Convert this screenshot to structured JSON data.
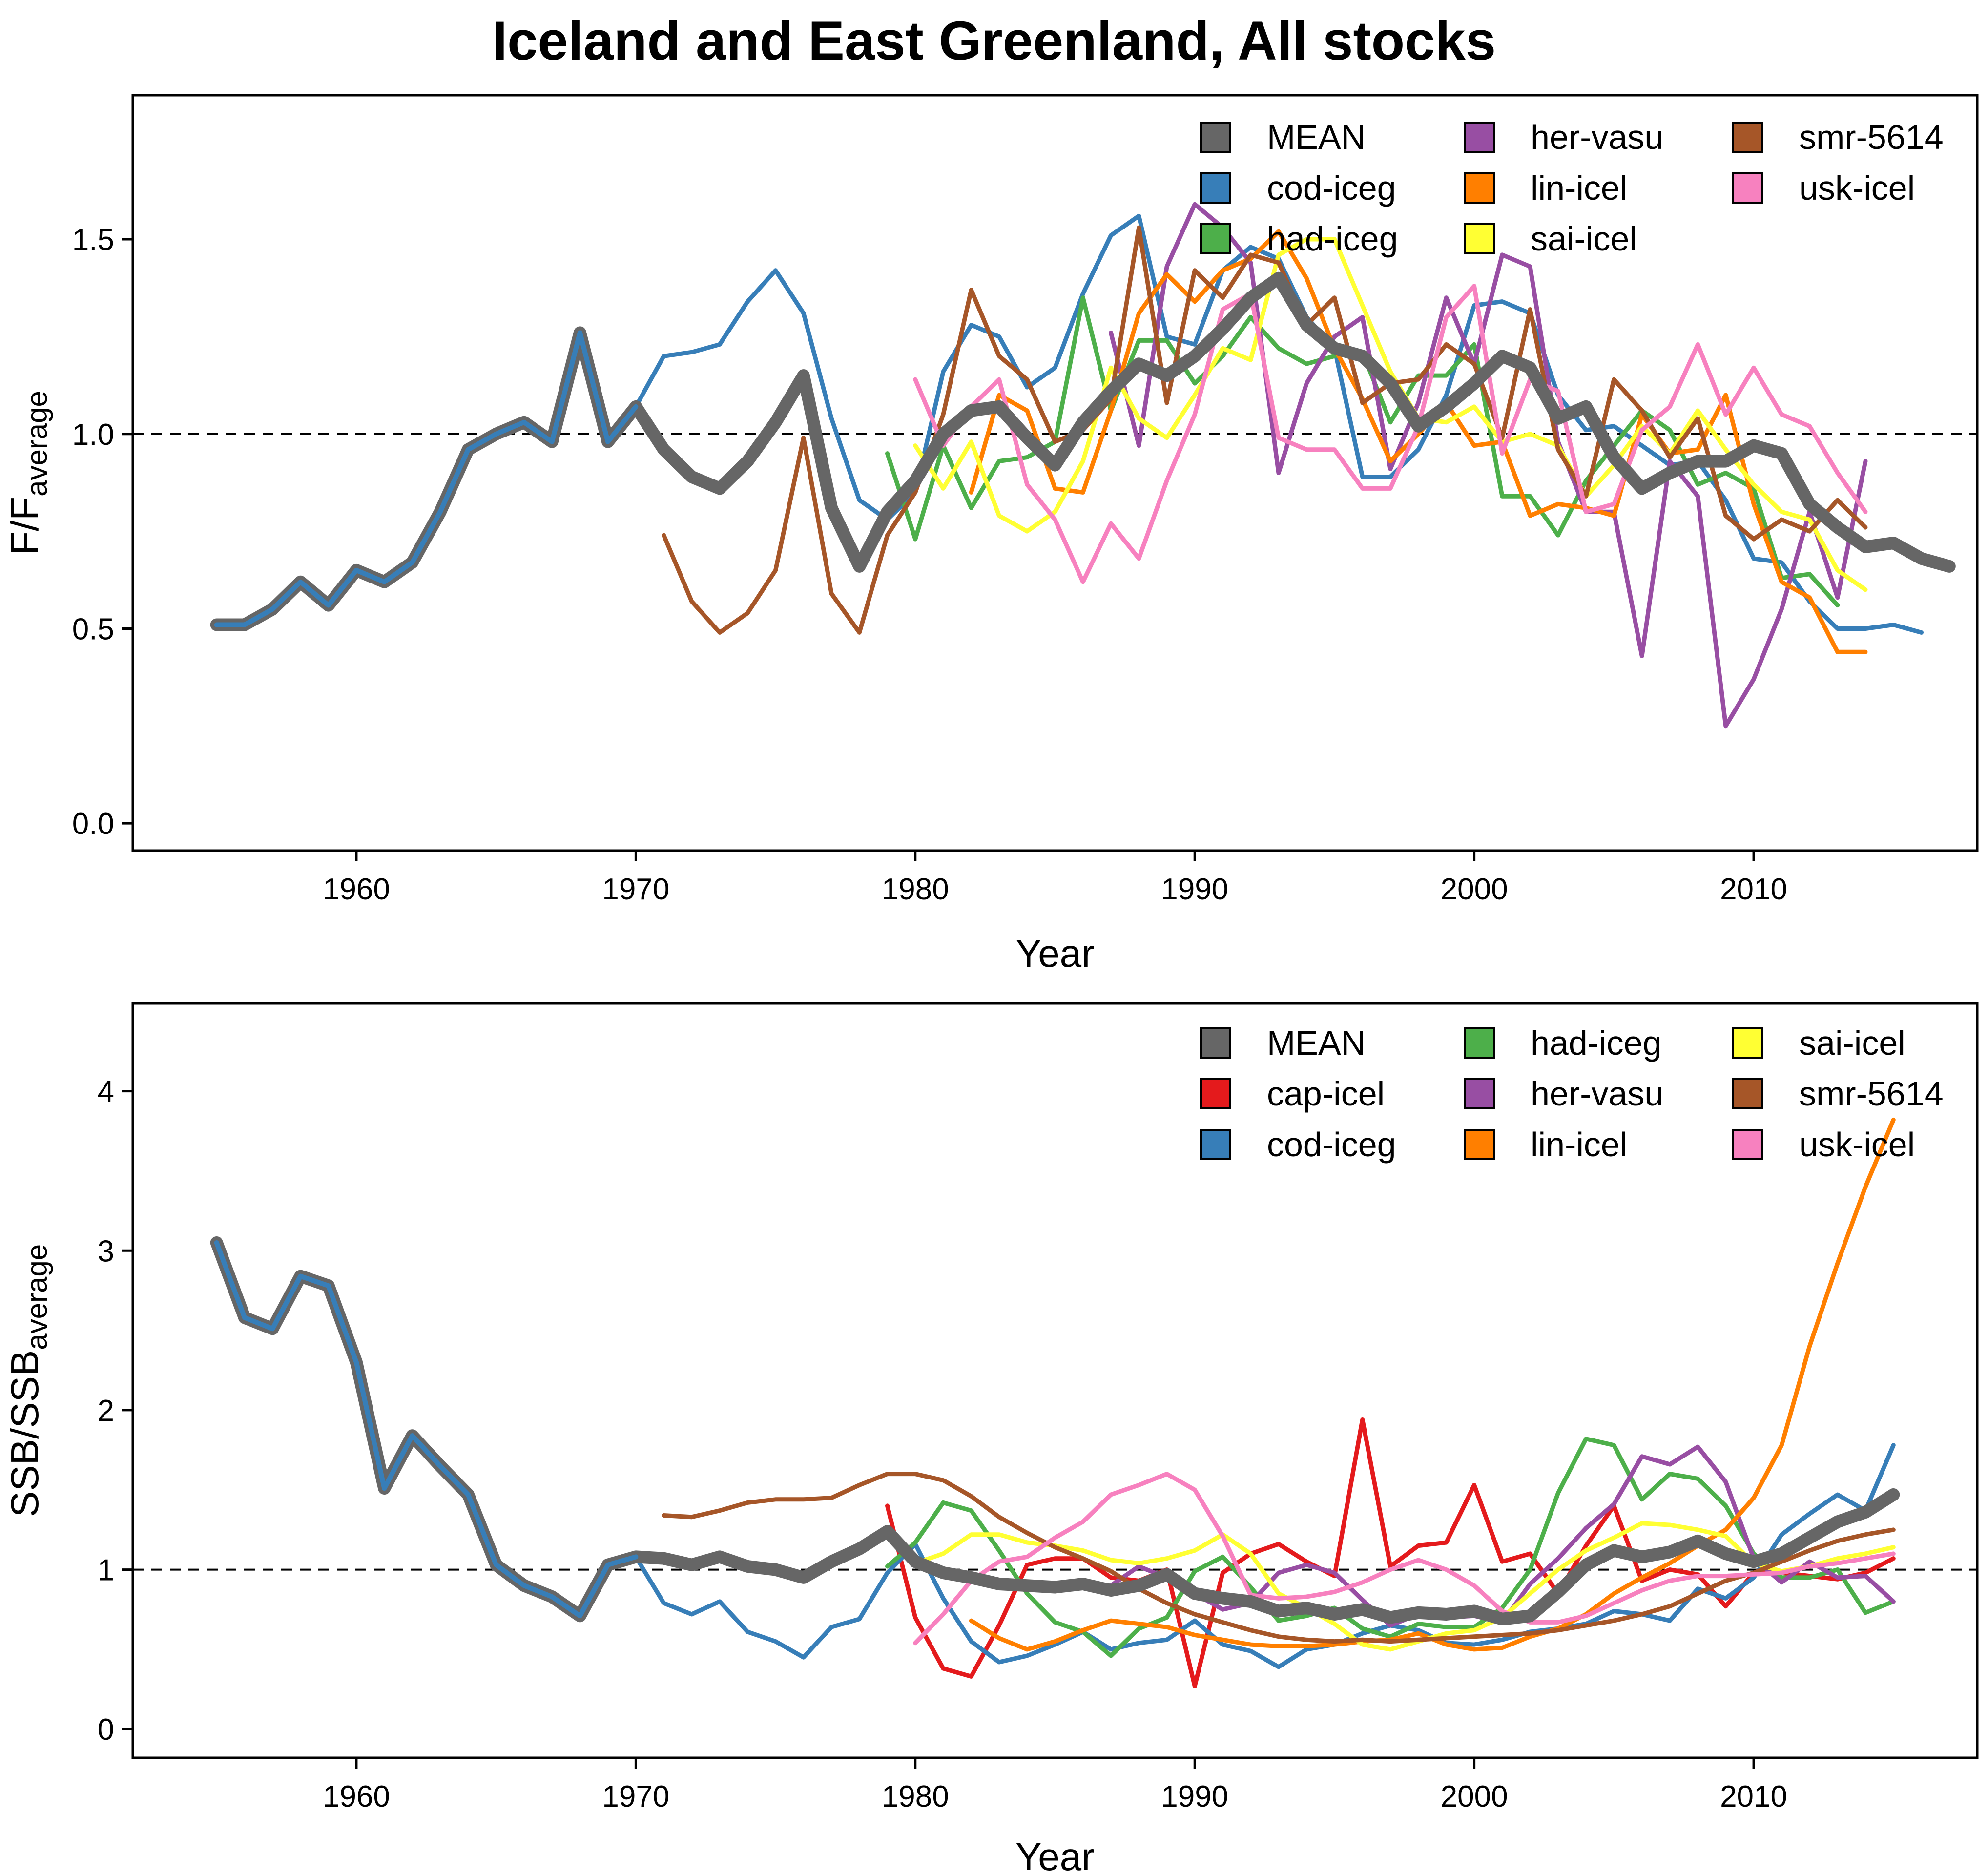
{
  "figure": {
    "title": "Iceland and East Greenland, All stocks"
  },
  "chart_data": [
    {
      "type": "line",
      "ylabel_main": "F/F",
      "ylabel_sub": "average",
      "xlabel": "Year",
      "xlim": [
        1952,
        2018
      ],
      "ylim": [
        -0.07,
        1.87
      ],
      "xticks": [
        1960,
        1970,
        1980,
        1990,
        2000,
        2010
      ],
      "yticks": [
        "0.0",
        "0.5",
        "1.0",
        "1.5"
      ],
      "reference_line": 1.0,
      "legend": {
        "placement": "top-right",
        "columns": 3
      },
      "series": [
        {
          "name": "MEAN",
          "color": "#666666",
          "start": 1955,
          "values": [
            0.51,
            0.51,
            0.55,
            0.62,
            0.56,
            0.65,
            0.62,
            0.67,
            0.8,
            0.96,
            1.0,
            1.03,
            0.98,
            1.26,
            0.98,
            1.07,
            0.96,
            0.89,
            0.86,
            0.93,
            1.03,
            1.15,
            0.81,
            0.66,
            0.8,
            0.88,
            1.0,
            1.06,
            1.07,
            0.99,
            0.92,
            1.03,
            1.11,
            1.18,
            1.15,
            1.2,
            1.27,
            1.35,
            1.4,
            1.28,
            1.22,
            1.2,
            1.13,
            1.02,
            1.07,
            1.13,
            1.2,
            1.17,
            1.04,
            1.07,
            0.94,
            0.86,
            0.9,
            0.93,
            0.93,
            0.97,
            0.95,
            0.82,
            0.76,
            0.71,
            0.72,
            0.68,
            0.66
          ]
        },
        {
          "name": "cod-iceg",
          "color": "#377EB8",
          "start": 1955,
          "values": [
            0.51,
            0.51,
            0.55,
            0.62,
            0.56,
            0.65,
            0.62,
            0.67,
            0.8,
            0.96,
            1.0,
            1.03,
            0.98,
            1.26,
            0.98,
            1.07,
            1.2,
            1.21,
            1.23,
            1.34,
            1.42,
            1.31,
            1.04,
            0.83,
            0.78,
            0.85,
            1.16,
            1.28,
            1.25,
            1.12,
            1.17,
            1.36,
            1.51,
            1.56,
            1.25,
            1.23,
            1.42,
            1.48,
            1.45,
            1.3,
            1.22,
            0.89,
            0.89,
            0.96,
            1.1,
            1.33,
            1.34,
            1.31,
            1.1,
            1.01,
            1.02,
            0.97,
            0.92,
            0.93,
            0.83,
            0.68,
            0.67,
            0.57,
            0.5,
            0.5,
            0.51,
            0.49
          ]
        },
        {
          "name": "had-iceg",
          "color": "#4DAF4A",
          "start": 1979,
          "values": [
            0.95,
            0.73,
            0.97,
            0.81,
            0.93,
            0.94,
            0.98,
            1.35,
            1.06,
            1.24,
            1.24,
            1.13,
            1.2,
            1.3,
            1.22,
            1.18,
            1.2,
            1.21,
            1.03,
            1.15,
            1.15,
            1.23,
            0.84,
            0.84,
            0.74,
            0.88,
            0.97,
            1.06,
            1.01,
            0.87,
            0.9,
            0.86,
            0.63,
            0.64,
            0.56
          ]
        },
        {
          "name": "her-vasu",
          "color": "#984EA3",
          "start": 1987,
          "values": [
            1.26,
            0.97,
            1.43,
            1.59,
            1.53,
            1.44,
            0.9,
            1.13,
            1.25,
            1.3,
            0.91,
            1.08,
            1.35,
            1.18,
            1.46,
            1.43,
            0.98,
            0.8,
            0.8,
            0.43,
            0.93,
            0.84,
            0.25,
            0.37,
            0.55,
            0.8,
            0.58,
            0.93
          ]
        },
        {
          "name": "lin-icel",
          "color": "#FF7F00",
          "start": 1982,
          "values": [
            0.85,
            1.1,
            1.06,
            0.86,
            0.85,
            1.06,
            1.31,
            1.41,
            1.34,
            1.42,
            1.45,
            1.52,
            1.4,
            1.22,
            1.09,
            0.93,
            1.0,
            1.08,
            0.97,
            0.98,
            0.79,
            0.82,
            0.81,
            0.79,
            1.05,
            0.95,
            0.96,
            1.1,
            0.82,
            0.62,
            0.58,
            0.44,
            0.44
          ]
        },
        {
          "name": "sai-icel",
          "color": "#FFFF33",
          "start": 1980,
          "values": [
            0.97,
            0.86,
            0.98,
            0.79,
            0.75,
            0.8,
            0.93,
            1.17,
            1.04,
            0.99,
            1.1,
            1.22,
            1.19,
            1.46,
            1.5,
            1.5,
            1.33,
            1.16,
            1.04,
            1.03,
            1.07,
            0.98,
            1.0,
            0.97,
            0.84,
            0.92,
            1.02,
            0.95,
            1.06,
            0.96,
            0.87,
            0.8,
            0.78,
            0.65,
            0.6
          ]
        },
        {
          "name": "smr-5614",
          "color": "#A65628",
          "start": 1971,
          "values": [
            0.74,
            0.57,
            0.49,
            0.54,
            0.65,
            0.99,
            0.59,
            0.49,
            0.74,
            0.85,
            1.05,
            1.37,
            1.2,
            1.14,
            0.98,
            1.01,
            1.09,
            1.53,
            1.08,
            1.42,
            1.35,
            1.46,
            1.44,
            1.28,
            1.35,
            1.08,
            1.13,
            1.14,
            1.23,
            1.18,
            0.99,
            1.32,
            0.96,
            0.84,
            1.14,
            1.06,
            0.94,
            1.04,
            0.79,
            0.73,
            0.78,
            0.75,
            0.83,
            0.76
          ]
        },
        {
          "name": "usk-icel",
          "color": "#F781BF",
          "start": 1980,
          "values": [
            1.14,
            0.97,
            1.07,
            1.14,
            0.87,
            0.78,
            0.62,
            0.77,
            0.68,
            0.88,
            1.05,
            1.32,
            1.36,
            0.99,
            0.96,
            0.96,
            0.86,
            0.86,
            1.02,
            1.3,
            1.38,
            0.95,
            1.14,
            1.11,
            0.8,
            0.82,
            1.01,
            1.07,
            1.23,
            1.05,
            1.17,
            1.05,
            1.02,
            0.9,
            0.8
          ]
        }
      ]
    },
    {
      "type": "line",
      "ylabel_main": "SSB/SSB",
      "ylabel_sub": "average",
      "xlabel": "Year",
      "xlim": [
        1952,
        2018
      ],
      "ylim": [
        -0.18,
        4.55
      ],
      "xticks": [
        1960,
        1970,
        1980,
        1990,
        2000,
        2010
      ],
      "yticks": [
        "0",
        "1",
        "2",
        "3",
        "4"
      ],
      "reference_line": 1.0,
      "legend": {
        "placement": "top-right",
        "columns": 3
      },
      "series": [
        {
          "name": "MEAN",
          "color": "#666666",
          "start": 1955,
          "values": [
            3.05,
            2.58,
            2.51,
            2.84,
            2.78,
            2.3,
            1.51,
            1.84,
            1.65,
            1.47,
            1.03,
            0.9,
            0.83,
            0.71,
            1.03,
            1.08,
            1.07,
            1.03,
            1.08,
            1.02,
            1.0,
            0.95,
            1.05,
            1.13,
            1.24,
            1.05,
            0.98,
            0.95,
            0.91,
            0.9,
            0.89,
            0.91,
            0.87,
            0.9,
            0.97,
            0.85,
            0.82,
            0.8,
            0.74,
            0.76,
            0.72,
            0.75,
            0.7,
            0.73,
            0.72,
            0.74,
            0.69,
            0.71,
            0.86,
            1.03,
            1.12,
            1.08,
            1.11,
            1.18,
            1.1,
            1.05,
            1.1,
            1.2,
            1.3,
            1.36,
            1.47
          ]
        },
        {
          "name": "cap-icel",
          "color": "#E41A1C",
          "start": 1979,
          "values": [
            1.4,
            0.7,
            0.38,
            0.33,
            0.65,
            1.03,
            1.07,
            1.07,
            0.95,
            0.93,
            1.0,
            0.27,
            0.98,
            1.1,
            1.16,
            1.05,
            0.96,
            1.94,
            1.02,
            1.15,
            1.17,
            1.53,
            1.05,
            1.1,
            0.85,
            1.15,
            1.4,
            0.93,
            1.0,
            0.97,
            0.77,
            0.98,
            0.98,
            0.96,
            0.94,
            0.98,
            1.07
          ]
        },
        {
          "name": "cod-iceg",
          "color": "#377EB8",
          "start": 1955,
          "values": [
            3.05,
            2.58,
            2.51,
            2.84,
            2.78,
            2.3,
            1.51,
            1.84,
            1.65,
            1.47,
            1.03,
            0.9,
            0.83,
            0.71,
            1.03,
            1.08,
            0.79,
            0.72,
            0.8,
            0.61,
            0.55,
            0.45,
            0.64,
            0.69,
            0.98,
            1.16,
            0.82,
            0.55,
            0.42,
            0.46,
            0.53,
            0.61,
            0.5,
            0.54,
            0.56,
            0.68,
            0.53,
            0.49,
            0.39,
            0.5,
            0.53,
            0.6,
            0.65,
            0.62,
            0.54,
            0.53,
            0.56,
            0.61,
            0.63,
            0.66,
            0.74,
            0.72,
            0.68,
            0.88,
            0.82,
            0.95,
            1.22,
            1.35,
            1.47,
            1.37,
            1.78
          ]
        },
        {
          "name": "had-iceg",
          "color": "#4DAF4A",
          "start": 1979,
          "values": [
            1.02,
            1.17,
            1.42,
            1.37,
            1.12,
            0.85,
            0.67,
            0.61,
            0.46,
            0.63,
            0.7,
            0.99,
            1.08,
            0.89,
            0.68,
            0.71,
            0.76,
            0.63,
            0.58,
            0.66,
            0.64,
            0.64,
            0.76,
            1.0,
            1.48,
            1.82,
            1.78,
            1.44,
            1.6,
            1.57,
            1.4,
            1.1,
            0.95,
            0.95,
            1.0,
            0.73,
            0.8
          ]
        },
        {
          "name": "her-vasu",
          "color": "#984EA3",
          "start": 1987,
          "values": [
            0.9,
            1.02,
            0.95,
            0.85,
            0.75,
            0.79,
            0.98,
            1.03,
            0.98,
            0.81,
            0.65,
            0.72,
            0.7,
            0.71,
            0.67,
            0.91,
            1.07,
            1.26,
            1.41,
            1.71,
            1.66,
            1.77,
            1.55,
            1.07,
            0.92,
            1.05,
            0.95,
            0.96,
            0.8
          ]
        },
        {
          "name": "lin-icel",
          "color": "#FF7F00",
          "start": 1982,
          "values": [
            0.68,
            0.57,
            0.5,
            0.55,
            0.62,
            0.68,
            0.66,
            0.64,
            0.59,
            0.56,
            0.53,
            0.52,
            0.52,
            0.53,
            0.55,
            0.56,
            0.6,
            0.53,
            0.5,
            0.51,
            0.58,
            0.63,
            0.72,
            0.85,
            0.95,
            1.04,
            1.15,
            1.25,
            1.45,
            1.78,
            2.4,
            2.92,
            3.4,
            3.82
          ]
        },
        {
          "name": "sai-icel",
          "color": "#FFFF33",
          "start": 1980,
          "values": [
            1.04,
            1.1,
            1.22,
            1.22,
            1.17,
            1.15,
            1.12,
            1.06,
            1.04,
            1.07,
            1.12,
            1.22,
            1.1,
            0.85,
            0.76,
            0.66,
            0.53,
            0.5,
            0.55,
            0.6,
            0.62,
            0.7,
            0.85,
            1.0,
            1.12,
            1.2,
            1.29,
            1.28,
            1.25,
            1.21,
            1.04,
            0.99,
            1.02,
            1.07,
            1.1,
            1.14
          ]
        },
        {
          "name": "smr-5614",
          "color": "#A65628",
          "start": 1971,
          "values": [
            1.34,
            1.33,
            1.37,
            1.42,
            1.44,
            1.44,
            1.45,
            1.53,
            1.6,
            1.6,
            1.56,
            1.46,
            1.33,
            1.23,
            1.14,
            1.07,
            0.99,
            0.88,
            0.79,
            0.72,
            0.67,
            0.62,
            0.58,
            0.56,
            0.55,
            0.56,
            0.55,
            0.56,
            0.57,
            0.58,
            0.59,
            0.6,
            0.62,
            0.65,
            0.68,
            0.72,
            0.77,
            0.85,
            0.93,
            0.98,
            1.05,
            1.12,
            1.18,
            1.22,
            1.25
          ]
        },
        {
          "name": "usk-icel",
          "color": "#F781BF",
          "start": 1980,
          "values": [
            0.54,
            0.72,
            0.93,
            1.05,
            1.08,
            1.2,
            1.3,
            1.47,
            1.53,
            1.6,
            1.5,
            1.21,
            0.84,
            0.82,
            0.83,
            0.86,
            0.92,
            1.0,
            1.06,
            1.0,
            0.9,
            0.74,
            0.67,
            0.67,
            0.71,
            0.79,
            0.87,
            0.93,
            0.96,
            0.96,
            0.97,
            0.98,
            1.02,
            1.04,
            1.07,
            1.1
          ]
        }
      ]
    }
  ]
}
